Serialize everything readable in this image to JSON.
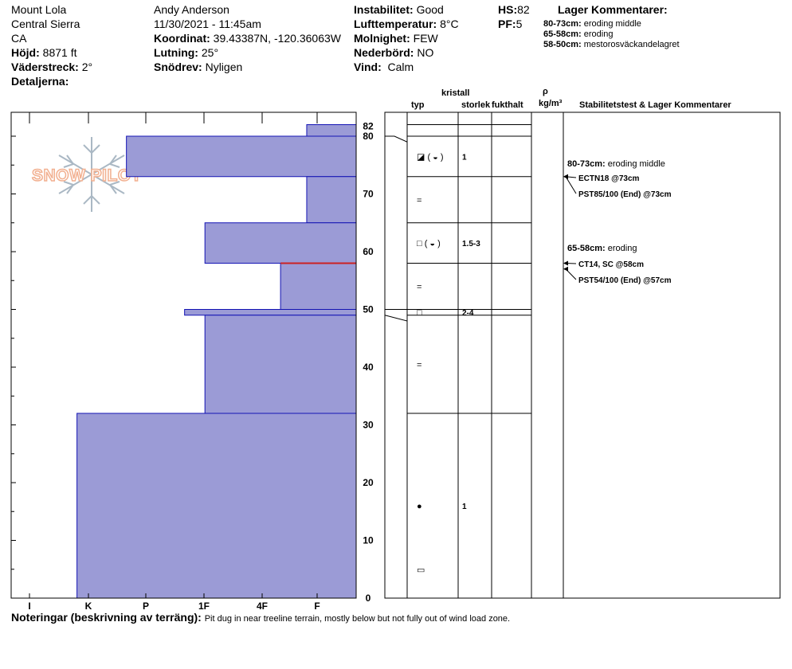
{
  "header": {
    "location": "Mount Lola",
    "range": "Central Sierra",
    "state": "CA",
    "elevation_label": "Höjd:",
    "elevation": "8871 ft",
    "aspect_label": "Väderstreck:",
    "aspect": "2°",
    "details_label": "Detaljerna:",
    "observer": "Andy Anderson",
    "datetime": "11/30/2021 - 11:45am",
    "coord_label": "Koordinat:",
    "coord": "39.43387N, -120.36063W",
    "slope_label": "Lutning:",
    "slope": "25°",
    "drift_label": "Snödrev:",
    "drift": "Nyligen",
    "instab_label": "Instabilitet:",
    "instab": "Good",
    "airtemp_label": "Lufttemperatur:",
    "airtemp": "8°C",
    "sky_label": "Molnighet:",
    "sky": "FEW",
    "precip_label": "Nederbörd:",
    "precip": "NO",
    "wind_label": "Vind:",
    "wind": "Calm",
    "hs_label": "HS:",
    "hs": "82",
    "pf_label": "PF:",
    "pf": "5",
    "layer_title": "Lager Kommentarer:",
    "layer_comments": [
      {
        "range": "80-73cm:",
        "text": "eroding middle"
      },
      {
        "range": "65-58cm:",
        "text": "eroding"
      },
      {
        "range": "58-50cm:",
        "text": "mestorosväckandelagret"
      }
    ]
  },
  "logo_text": "SNOW PILOT",
  "columns": {
    "crystal": "kristall",
    "type": "typ",
    "size": "storlek",
    "moisture": "fukthalt",
    "rho": "ρ",
    "density_unit": "kg/m³",
    "stability": "Stabilitetstest & Lager Kommentarer"
  },
  "chart_data": {
    "type": "bar",
    "orientation": "horizontal",
    "x_categories": [
      "I",
      "K",
      "P",
      "1F",
      "4F",
      "F"
    ],
    "y_ticks": [
      0,
      10,
      20,
      30,
      40,
      50,
      60,
      70,
      80
    ],
    "y_top_label": "82",
    "ylim": [
      0,
      82
    ],
    "layers": [
      {
        "top": 82,
        "bottom": 80,
        "hardness": 0.85
      },
      {
        "top": 80,
        "bottom": 73,
        "hardness": 3.95
      },
      {
        "top": 73,
        "bottom": 65,
        "hardness": 0.85
      },
      {
        "top": 65,
        "bottom": 58,
        "hardness": 2.6
      },
      {
        "top": 58,
        "bottom": 50,
        "hardness": 1.3
      },
      {
        "top": 50,
        "bottom": 49,
        "hardness": 2.95
      },
      {
        "top": 49,
        "bottom": 32,
        "hardness": 2.6
      },
      {
        "top": 32,
        "bottom": 0,
        "hardness": 4.8
      }
    ],
    "critical_layer": 58
  },
  "crystals": [
    {
      "depth": 76.5,
      "type": "◪ ( ◒ )",
      "size": "1"
    },
    {
      "depth": 69,
      "type": "=",
      "size": ""
    },
    {
      "depth": 61.5,
      "type": "□ ( ◒ )",
      "size": "1.5-3"
    },
    {
      "depth": 54,
      "type": "=",
      "size": ""
    },
    {
      "depth": 49.5,
      "type": "□",
      "size": "2-4"
    },
    {
      "depth": 40.5,
      "type": "=",
      "size": ""
    },
    {
      "depth": 16,
      "type": "●",
      "size": "1"
    },
    {
      "depth": 5,
      "type": "▭",
      "size": ""
    }
  ],
  "stability_comments": [
    {
      "depth": 80,
      "range": "80-73cm:",
      "text": "eroding middle"
    },
    {
      "depth": 73,
      "test": "ECTN18 @73cm"
    },
    {
      "depth": 73,
      "test": "PST85/100 (End) @73cm"
    },
    {
      "depth": 65,
      "range": "65-58cm:",
      "text": "eroding"
    },
    {
      "depth": 58,
      "test": "CT14, SC @58cm"
    },
    {
      "depth": 57,
      "test": "PST54/100 (End) @57cm"
    }
  ],
  "notes_label": "Noteringar (beskrivning av terräng):",
  "notes": "Pit dug in near treeline terrain, mostly below but not fully out of wind load zone.",
  "colors": {
    "layer_fill": "#9b9bd6",
    "layer_stroke": "#1414b4",
    "critical": "#cc2222",
    "logo": "#f2b090",
    "snowflake": "#aab8c4"
  }
}
